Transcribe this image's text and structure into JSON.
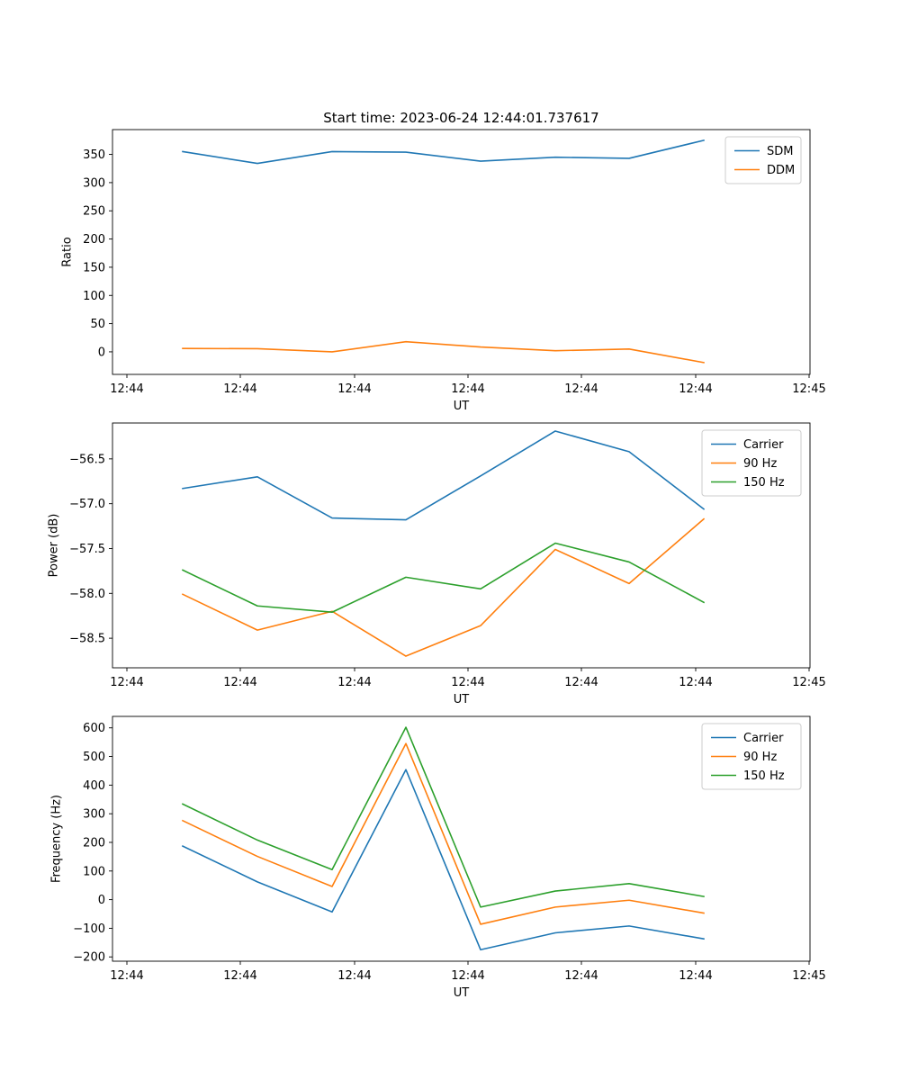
{
  "figure_title": "Start time: 2023-06-24 12:44:01.737617",
  "chart_data": [
    {
      "type": "line",
      "title": "Start time: 2023-06-24 12:44:01.737617",
      "xlabel": "UT",
      "ylabel": "Ratio",
      "x_tick_labels": [
        "12:44",
        "12:44",
        "12:44",
        "12:44",
        "12:44",
        "12:44",
        "12:45"
      ],
      "y_ticks": [
        0,
        50,
        100,
        150,
        200,
        250,
        300,
        350
      ],
      "y_tick_labels": [
        "0",
        "50",
        "100",
        "150",
        "200",
        "250",
        "300",
        "350"
      ],
      "ylim": [
        -40,
        394
      ],
      "grid": false,
      "legend_position": "upper right",
      "x_count": 8,
      "series": [
        {
          "name": "SDM",
          "color": "#1f77b4",
          "values": [
            355,
            334,
            355,
            354,
            338,
            345,
            343,
            375
          ]
        },
        {
          "name": "DDM",
          "color": "#ff7f0e",
          "values": [
            6,
            5.5,
            0,
            18,
            8.5,
            2,
            5,
            -19
          ]
        }
      ]
    },
    {
      "type": "line",
      "title": "",
      "xlabel": "UT",
      "ylabel": "Power (dB)",
      "x_tick_labels": [
        "12:44",
        "12:44",
        "12:44",
        "12:44",
        "12:44",
        "12:44",
        "12:45"
      ],
      "y_ticks": [
        -58.5,
        -58.0,
        -57.5,
        -57.0,
        -56.5
      ],
      "y_tick_labels": [
        "−58.5",
        "−58.0",
        "−57.5",
        "−57.0",
        "−56.5"
      ],
      "ylim": [
        -58.83,
        -56.1
      ],
      "grid": false,
      "legend_position": "upper right",
      "x_count": 8,
      "series": [
        {
          "name": "Carrier",
          "color": "#1f77b4",
          "values": [
            -56.83,
            -56.7,
            -57.16,
            -57.18,
            -56.69,
            -56.19,
            -56.42,
            -57.06
          ]
        },
        {
          "name": "90 Hz",
          "color": "#ff7f0e",
          "values": [
            -58.01,
            -58.41,
            -58.2,
            -58.7,
            -58.36,
            -57.51,
            -57.89,
            -57.17
          ]
        },
        {
          "name": "150 Hz",
          "color": "#2ca02c",
          "values": [
            -57.74,
            -58.14,
            -58.21,
            -57.82,
            -57.95,
            -57.44,
            -57.65,
            -58.1
          ]
        }
      ]
    },
    {
      "type": "line",
      "title": "",
      "xlabel": "UT",
      "ylabel": "Frequency (Hz)",
      "x_tick_labels": [
        "12:44",
        "12:44",
        "12:44",
        "12:44",
        "12:44",
        "12:44",
        "12:45"
      ],
      "y_ticks": [
        -200,
        -100,
        0,
        100,
        200,
        300,
        400,
        500,
        600
      ],
      "y_tick_labels": [
        "−200",
        "−100",
        "0",
        "100",
        "200",
        "300",
        "400",
        "500",
        "600"
      ],
      "ylim": [
        -215,
        640
      ],
      "grid": false,
      "legend_position": "upper right",
      "x_count": 8,
      "series": [
        {
          "name": "Carrier",
          "color": "#1f77b4",
          "values": [
            187,
            62,
            -43,
            454,
            -175,
            -116,
            -92,
            -137
          ]
        },
        {
          "name": "90 Hz",
          "color": "#ff7f0e",
          "values": [
            276,
            151,
            46,
            545,
            -86,
            -26,
            -2,
            -47
          ]
        },
        {
          "name": "150 Hz",
          "color": "#2ca02c",
          "values": [
            334,
            208,
            105,
            602,
            -26,
            30,
            56,
            11
          ]
        }
      ]
    }
  ]
}
